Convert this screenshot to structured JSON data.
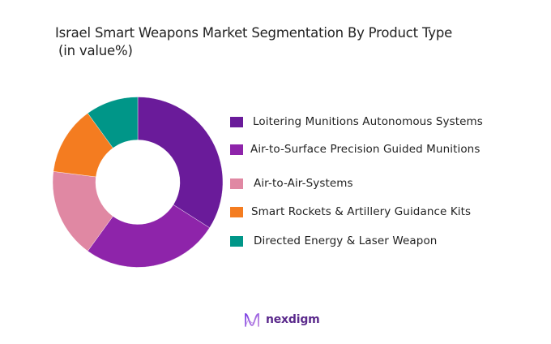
{
  "header": {
    "title_line1": "Israel Smart Weapons Market Segmentation By Product Type",
    "title_line2": "(in value%)"
  },
  "chart_data": {
    "type": "pie",
    "variant": "donut",
    "title": "Israel Smart Weapons Market Segmentation By Product Type (in value%)",
    "categories": [
      "Loitering Munitions Autonomous Systems",
      "Air-to-Surface Precision Guided Munitions",
      "Air-to-Air-Systems",
      "Smart Rockets & Artillery Guidance Kits",
      "Directed Energy & Laser Weapon"
    ],
    "values": [
      34,
      26,
      17,
      13,
      10
    ],
    "colors": [
      "#6a1b9a",
      "#8e24aa",
      "#e088a3",
      "#f47c20",
      "#009688"
    ],
    "unit": "%",
    "legend_position": "right",
    "start_angle_deg": 0,
    "direction": "clockwise"
  },
  "legend": {
    "items": [
      {
        "label": "Loitering Munitions Autonomous Systems",
        "color": "#6a1b9a"
      },
      {
        "label": "Air-to-Surface Precision Guided Munitions",
        "color": "#8e24aa"
      },
      {
        "label": "Air-to-Air-Systems",
        "color": "#e088a3"
      },
      {
        "label": "Smart Rockets & Artillery Guidance Kits",
        "color": "#f47c20"
      },
      {
        "label": "Directed Energy & Laser Weapon",
        "color": "#009688"
      }
    ]
  },
  "branding": {
    "logo_text": "nexdigm",
    "logo_icon": "wave-n-icon",
    "color": "#5b2a8c"
  }
}
